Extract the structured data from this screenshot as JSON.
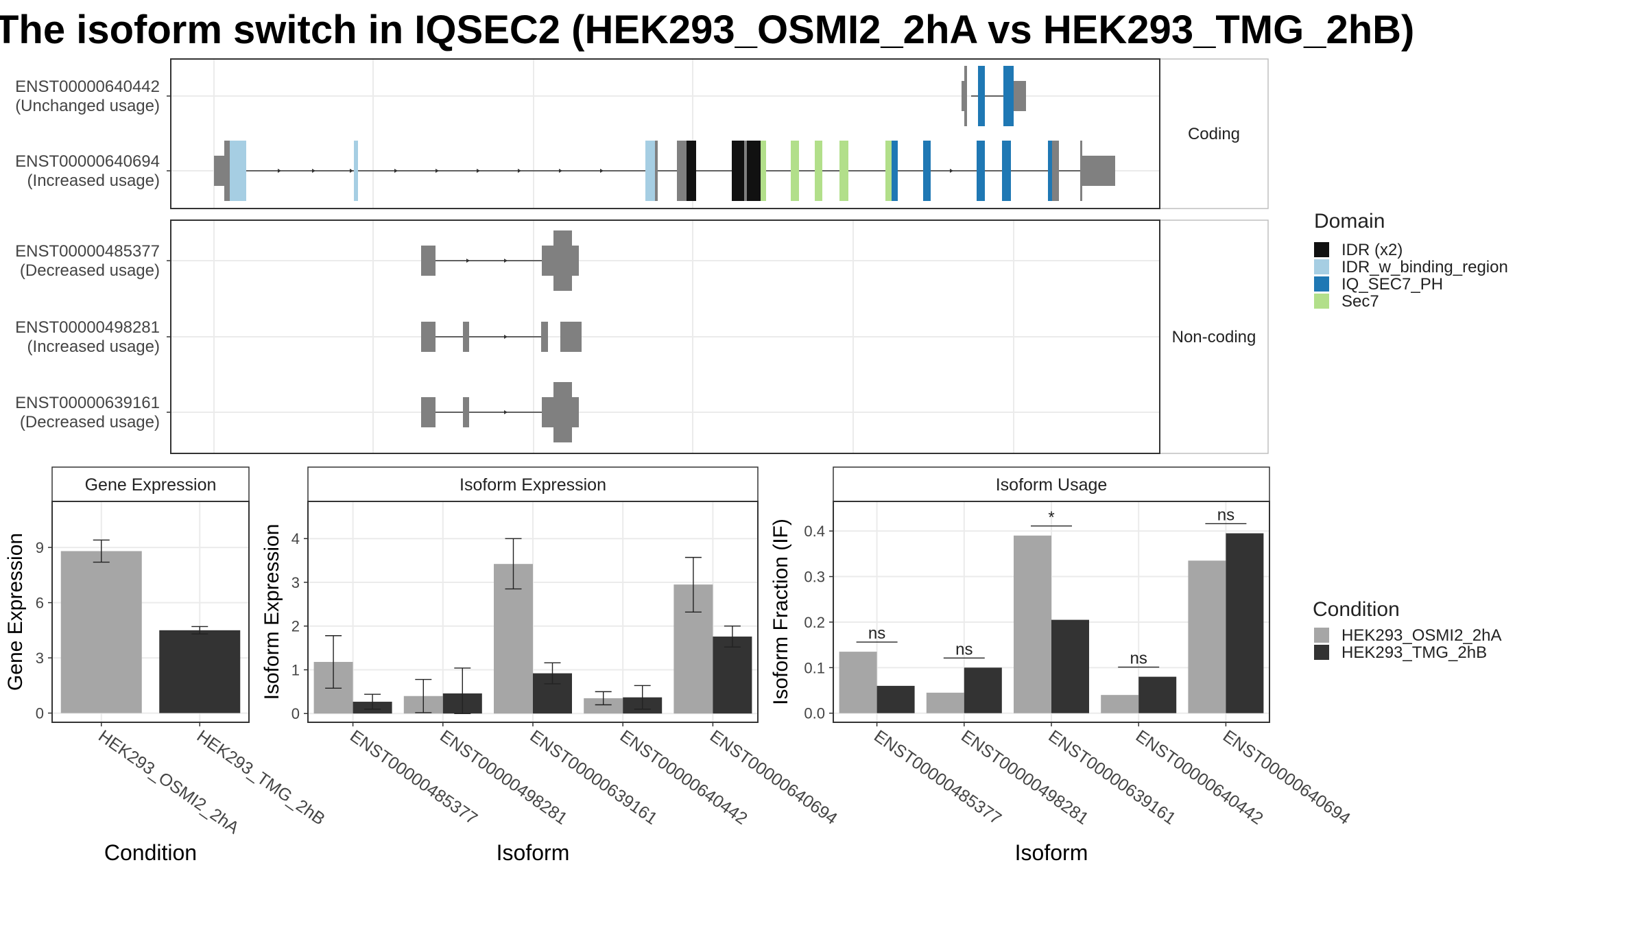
{
  "title": "The isoform switch in IQSEC2 (HEK293_OSMI2_2hA vs HEK293_TMG_2hB)",
  "colors": {
    "cond_a": "#a6a6a6",
    "cond_b": "#333333",
    "exon": "#808080",
    "idr": "#111111",
    "idr_binding": "#a6cee3",
    "iq_sec7_ph": "#1f78b4",
    "sec7": "#b2df8a"
  },
  "chart_data": [
    {
      "type": "other",
      "subtype": "transcript_structure",
      "facets": [
        {
          "label": "Coding",
          "transcripts": [
            {
              "id": "ENST00000640442",
              "status": "(Unchanged usage)"
            },
            {
              "id": "ENST00000640694",
              "status": "(Increased usage)"
            }
          ]
        },
        {
          "label": "Non-coding",
          "transcripts": [
            {
              "id": "ENST00000485377",
              "status": "(Decreased usage)"
            },
            {
              "id": "ENST00000498281",
              "status": "(Increased usage)"
            },
            {
              "id": "ENST00000639161",
              "status": "(Decreased usage)"
            }
          ]
        }
      ],
      "legend": {
        "title": "Domain",
        "entries": [
          {
            "label": "IDR (x2)",
            "color": "#111111"
          },
          {
            "label": "IDR_w_binding_region",
            "color": "#a6cee3"
          },
          {
            "label": "IQ_SEC7_PH",
            "color": "#1f78b4"
          },
          {
            "label": "Sec7",
            "color": "#b2df8a"
          }
        ]
      }
    },
    {
      "type": "bar",
      "title": "Gene Expression",
      "xlabel": "Condition",
      "ylabel": "Gene Expression",
      "categories": [
        "HEK293_OSMI2_2hA",
        "HEK293_TMG_2hB"
      ],
      "values": [
        8.8,
        4.5
      ],
      "errors": [
        [
          8.2,
          9.4
        ],
        [
          4.3,
          4.7
        ]
      ],
      "yticks": [
        "0",
        "3",
        "6",
        "9"
      ],
      "ylim": [
        -0.5,
        11.5
      ]
    },
    {
      "type": "bar",
      "title": "Isoform Expression",
      "xlabel": "Isoform",
      "ylabel": "Isoform Expression",
      "categories": [
        "ENST00000485377",
        "ENST00000498281",
        "ENST00000639161",
        "ENST00000640442",
        "ENST00000640694"
      ],
      "series": [
        {
          "name": "HEK293_OSMI2_2hA",
          "values": [
            1.18,
            0.4,
            3.42,
            0.35,
            2.95
          ],
          "errors": [
            [
              0.58,
              1.78
            ],
            [
              0.02,
              0.78
            ],
            [
              2.85,
              4.0
            ],
            [
              0.2,
              0.5
            ],
            [
              2.32,
              3.57
            ]
          ]
        },
        {
          "name": "HEK293_TMG_2hB",
          "values": [
            0.27,
            0.46,
            0.92,
            0.37,
            1.76
          ],
          "errors": [
            [
              0.1,
              0.44
            ],
            [
              0.0,
              1.04
            ],
            [
              0.68,
              1.16
            ],
            [
              0.1,
              0.64
            ],
            [
              1.52,
              2.0
            ]
          ]
        }
      ],
      "yticks": [
        "0",
        "1",
        "2",
        "3",
        "4"
      ],
      "ylim": [
        -0.2,
        4.85
      ]
    },
    {
      "type": "bar",
      "title": "Isoform Usage",
      "xlabel": "Isoform",
      "ylabel": "Isoform Fraction (IF)",
      "categories": [
        "ENST00000485377",
        "ENST00000498281",
        "ENST00000639161",
        "ENST00000640442",
        "ENST00000640694"
      ],
      "series": [
        {
          "name": "HEK293_OSMI2_2hA",
          "values": [
            0.135,
            0.045,
            0.39,
            0.04,
            0.335
          ]
        },
        {
          "name": "HEK293_TMG_2hB",
          "values": [
            0.06,
            0.1,
            0.205,
            0.08,
            0.395
          ]
        }
      ],
      "significance": [
        "ns",
        "ns",
        "*",
        "ns",
        "ns"
      ],
      "yticks": [
        "0.0",
        "0.1",
        "0.2",
        "0.3",
        "0.4"
      ],
      "ylim": [
        -0.02,
        0.465
      ]
    }
  ],
  "condition_legend": {
    "title": "Condition",
    "entries": [
      {
        "label": "HEK293_OSMI2_2hA",
        "color": "#a6a6a6"
      },
      {
        "label": "HEK293_TMG_2hB",
        "color": "#333333"
      }
    ]
  }
}
